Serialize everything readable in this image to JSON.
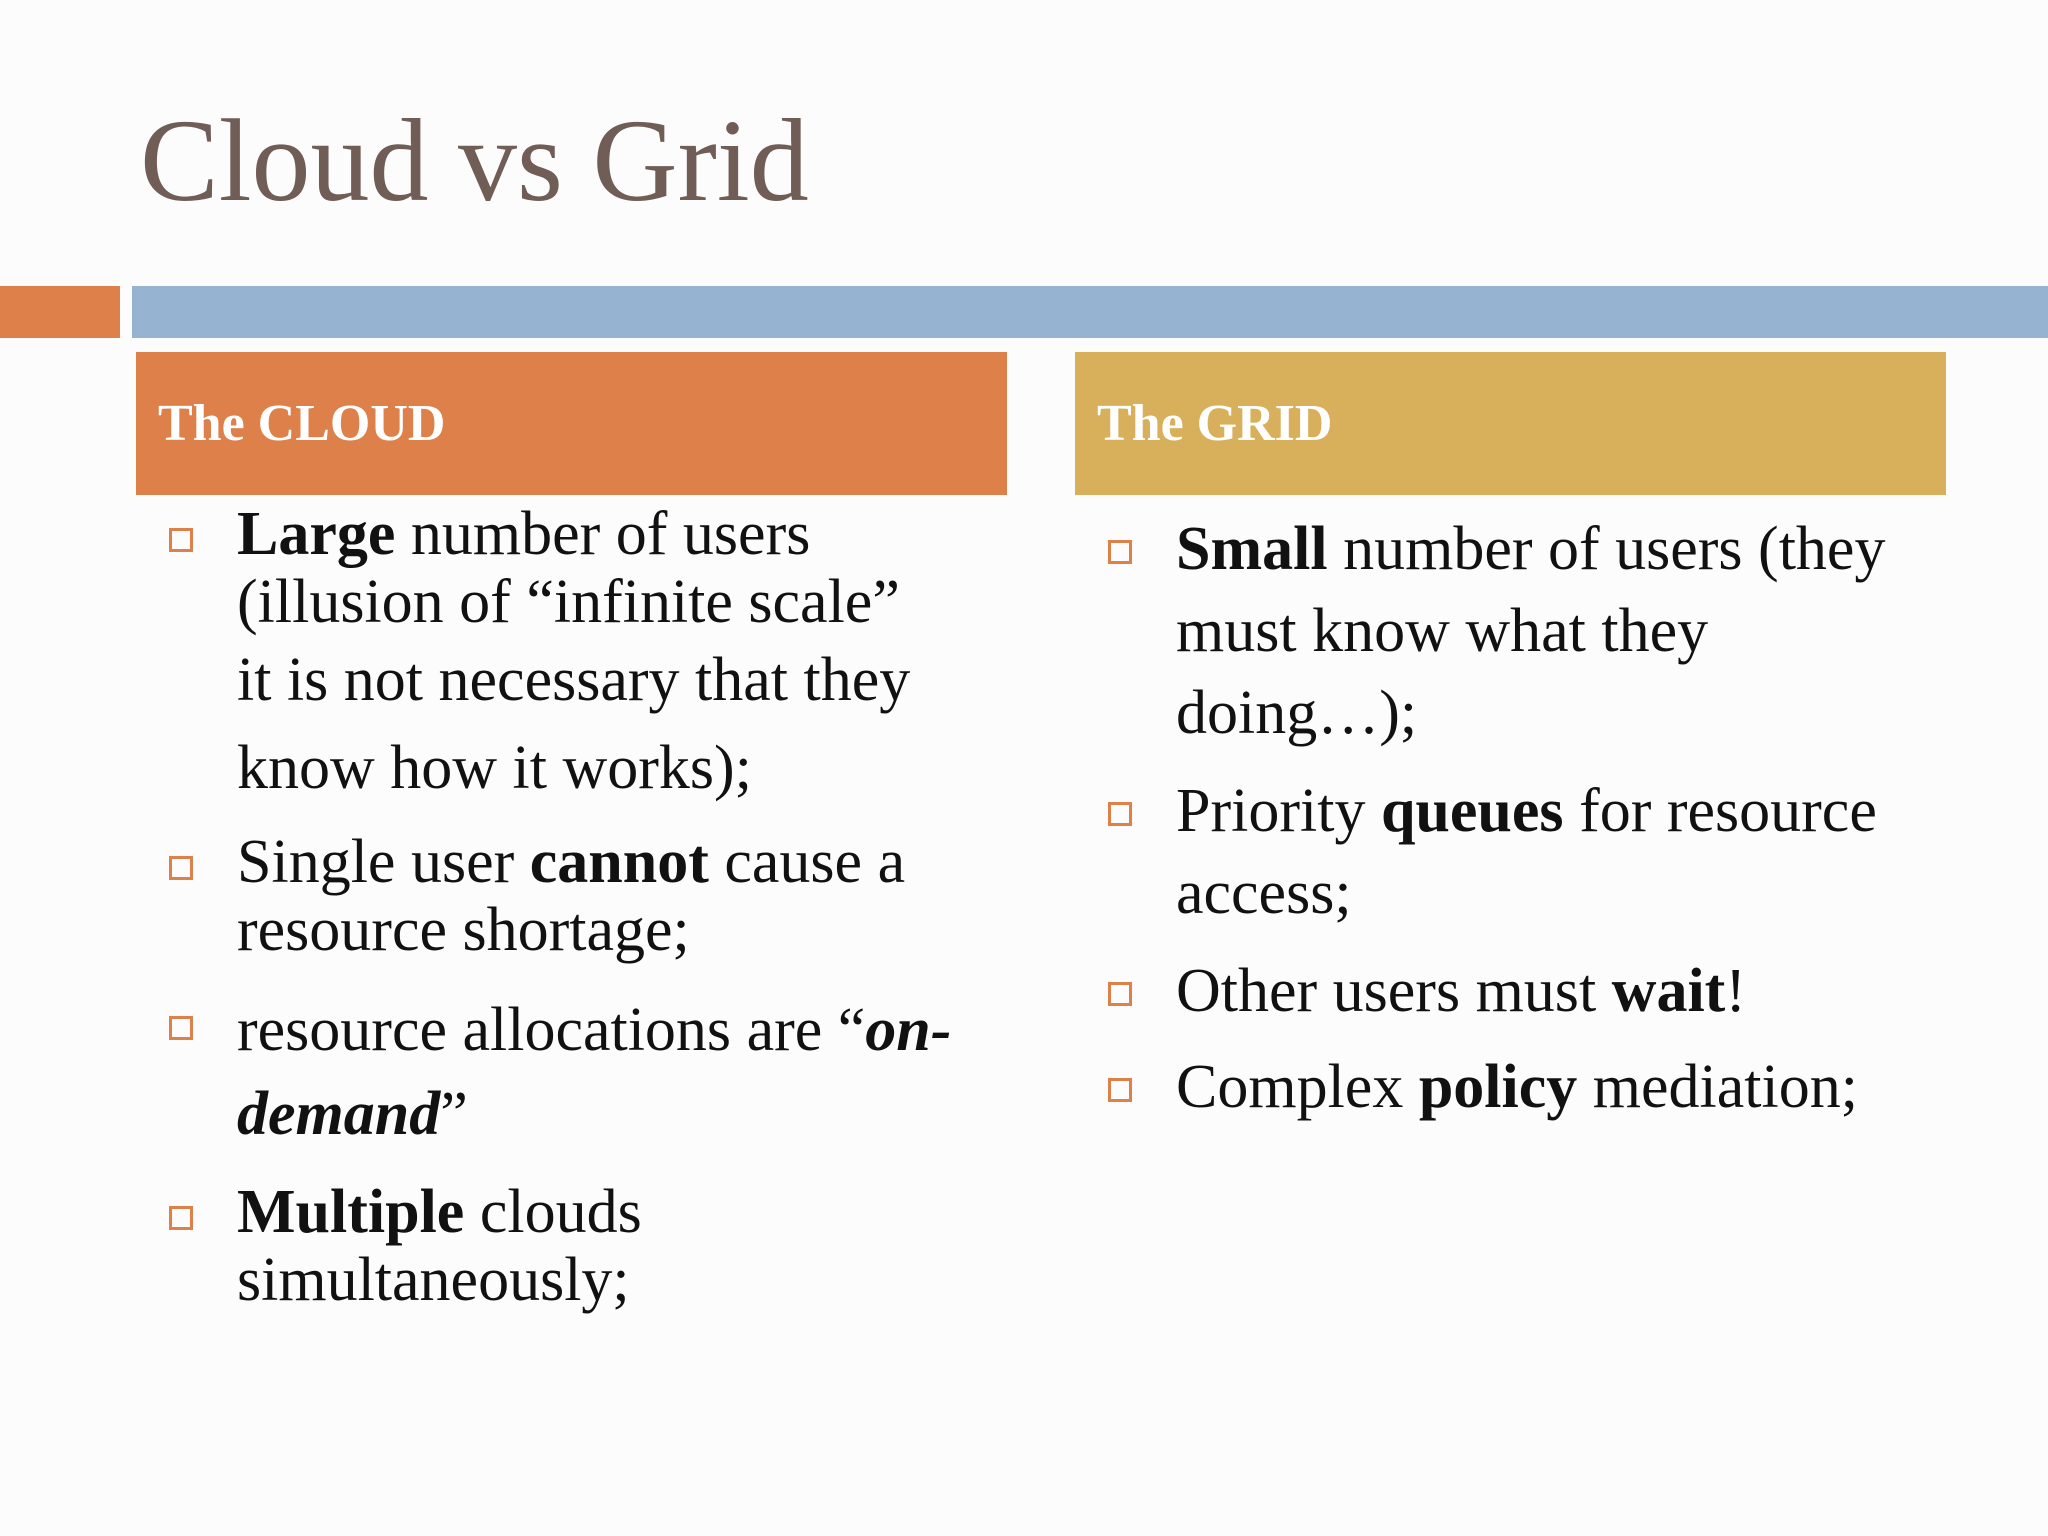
{
  "title": "Cloud vs Grid",
  "colors": {
    "title": "#6f5d56",
    "accent_orange": "#dd8049",
    "accent_blue": "#96b4d2",
    "cloud_header": "#dd8049",
    "grid_header": "#d8b05b",
    "bullet_box": "#dd8049",
    "body_text": "#111111"
  },
  "bullet_icon": "hollow-square",
  "cloud": {
    "header": "The CLOUD",
    "items": [
      {
        "bold": "Large",
        "rest": " number of  users (illusion of “infinite scale”",
        "extra": "it is not necessary that they know how it works);"
      },
      {
        "pre": "Single user ",
        "bold": "cannot",
        "post": " cause a resource shortage;"
      },
      {
        "pre": "resource allocations are “",
        "bold_italic": "on-demand",
        "post": "”"
      },
      {
        "bold": "Multiple",
        "rest": " clouds simultaneously;"
      }
    ]
  },
  "grid": {
    "header": "The GRID",
    "items": [
      {
        "bold": "Small",
        "rest": " number of  users (they must know what they doing…);"
      },
      {
        "pre": "Priority ",
        "bold": "queues",
        "post": " for resource access;"
      },
      {
        "pre": "Other users must ",
        "bold": "wait",
        "post": "!"
      },
      {
        "pre": "Complex ",
        "bold": "policy",
        "post": " mediation;"
      }
    ]
  }
}
